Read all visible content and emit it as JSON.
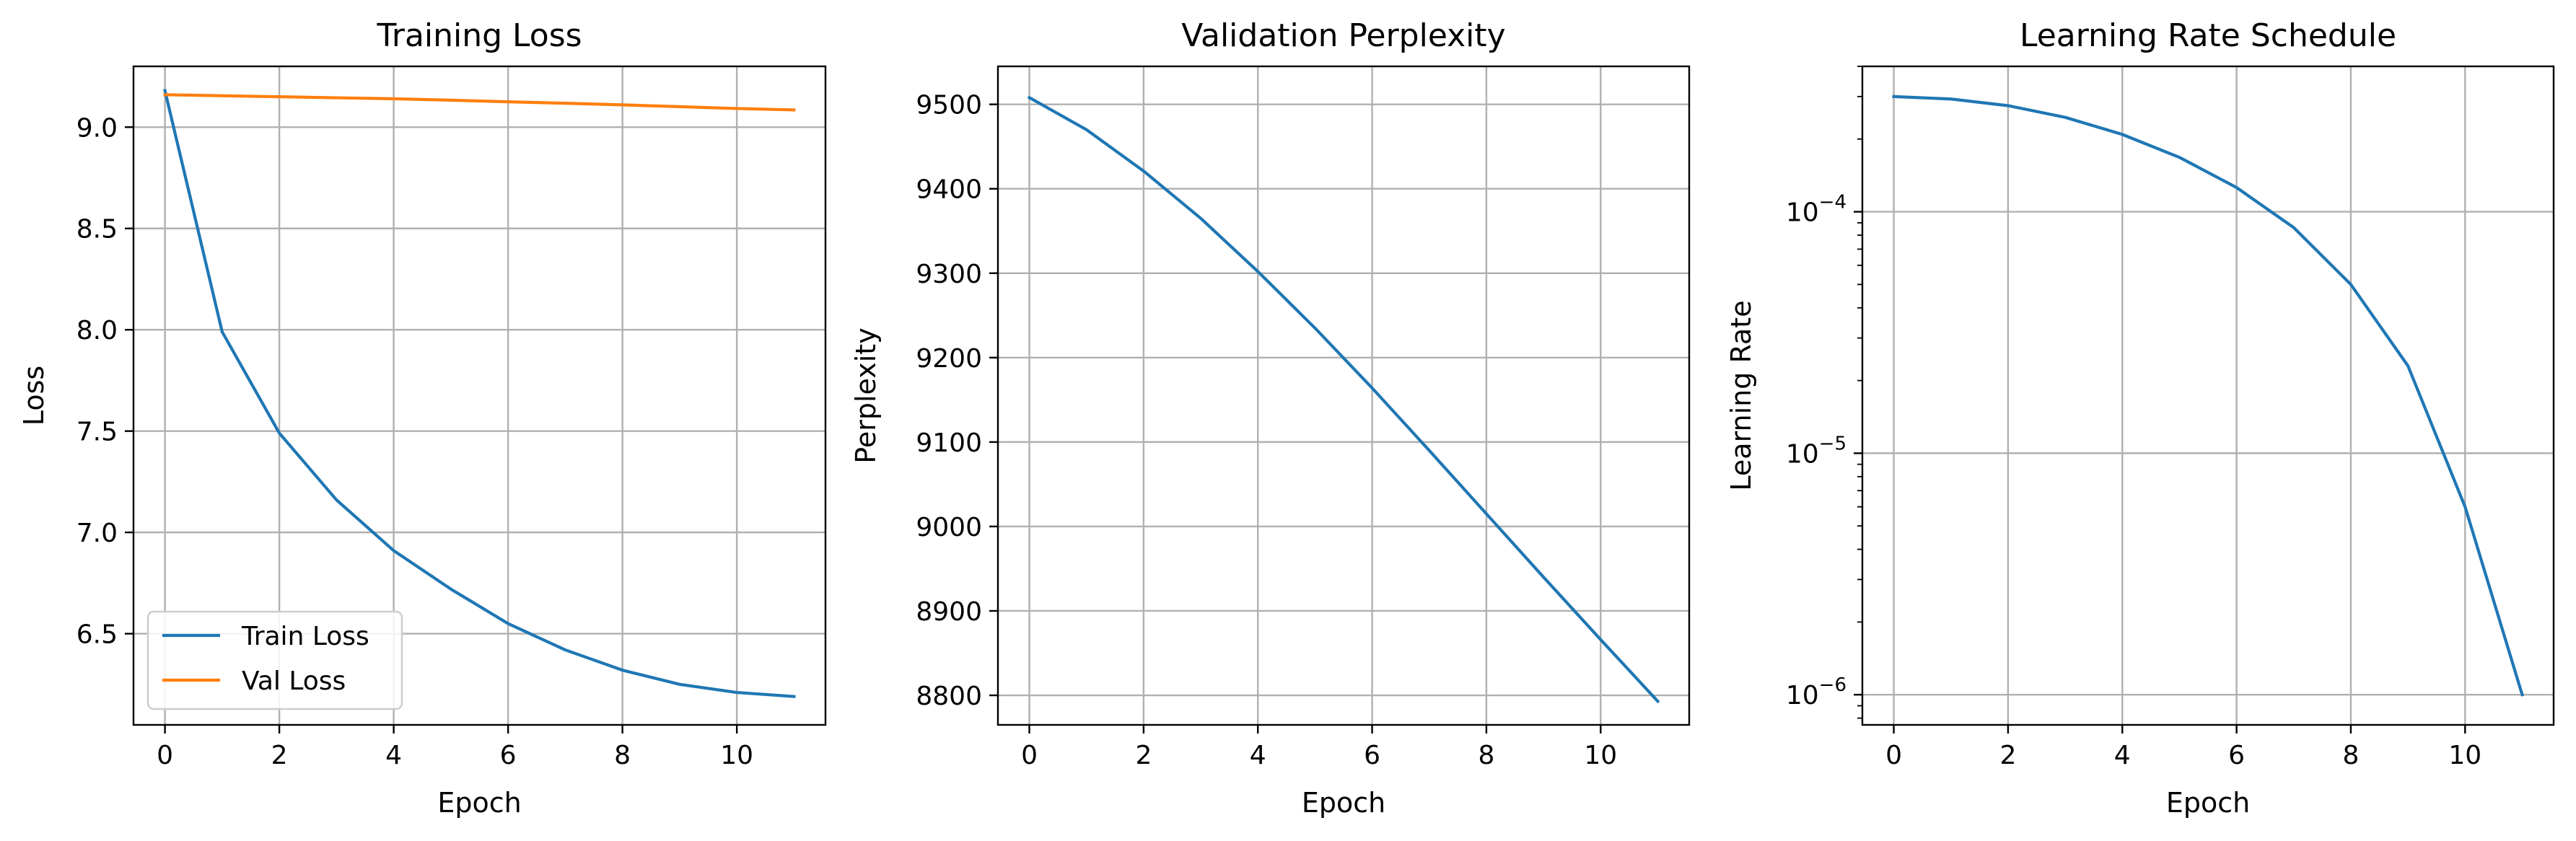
{
  "chart_data": [
    {
      "type": "line",
      "title": "Training Loss",
      "xlabel": "Epoch",
      "ylabel": "Loss",
      "x": [
        0,
        1,
        2,
        3,
        4,
        5,
        6,
        7,
        8,
        9,
        10,
        11
      ],
      "xlim": [
        -0.55,
        11.55
      ],
      "ylim": [
        6.05,
        9.3
      ],
      "xticks": [
        0,
        2,
        4,
        6,
        8,
        10
      ],
      "yticks": [
        6.5,
        7.0,
        7.5,
        8.0,
        8.5,
        9.0
      ],
      "xtick_labels": [
        "0",
        "2",
        "4",
        "6",
        "8",
        "10"
      ],
      "ytick_labels": [
        "6.5",
        "7.0",
        "7.5",
        "8.0",
        "8.5",
        "9.0"
      ],
      "grid": true,
      "legend_loc": "lower-left",
      "series": [
        {
          "name": "Train Loss",
          "color": "#1f77b4",
          "values": [
            9.18,
            7.99,
            7.49,
            7.16,
            6.91,
            6.72,
            6.55,
            6.42,
            6.32,
            6.25,
            6.21,
            6.19
          ]
        },
        {
          "name": "Val Loss",
          "color": "#ff7f0e",
          "values": [
            9.16,
            9.155,
            9.15,
            9.145,
            9.14,
            9.133,
            9.125,
            9.118,
            9.11,
            9.101,
            9.092,
            9.085
          ]
        }
      ]
    },
    {
      "type": "line",
      "title": "Validation Perplexity",
      "xlabel": "Epoch",
      "ylabel": "Perplexity",
      "x": [
        0,
        1,
        2,
        3,
        4,
        5,
        6,
        7,
        8,
        9,
        10,
        11
      ],
      "xlim": [
        -0.55,
        11.55
      ],
      "ylim": [
        8765,
        9545
      ],
      "xticks": [
        0,
        2,
        4,
        6,
        8,
        10
      ],
      "yticks": [
        8800,
        8900,
        9000,
        9100,
        9200,
        9300,
        9400,
        9500
      ],
      "xtick_labels": [
        "0",
        "2",
        "4",
        "6",
        "8",
        "10"
      ],
      "ytick_labels": [
        "8800",
        "8900",
        "9000",
        "9100",
        "9200",
        "9300",
        "9400",
        "9500"
      ],
      "grid": true,
      "series": [
        {
          "color": "#1f77b4",
          "values": [
            9508,
            9470,
            9421,
            9365,
            9302,
            9235,
            9164,
            9090,
            9015,
            8940,
            8866,
            8793
          ]
        }
      ]
    },
    {
      "type": "line",
      "title": "Learning Rate Schedule",
      "xlabel": "Epoch",
      "ylabel": "Learning Rate",
      "yscale": "log",
      "x": [
        0,
        1,
        2,
        3,
        4,
        5,
        6,
        7,
        8,
        9,
        10,
        11
      ],
      "xlim": [
        -0.55,
        11.55
      ],
      "ylim": [
        7.5e-07,
        0.0004
      ],
      "xticks": [
        0,
        2,
        4,
        6,
        8,
        10
      ],
      "yticks": [
        1e-06,
        1e-05,
        0.0001
      ],
      "xtick_labels": [
        "0",
        "2",
        "4",
        "6",
        "8",
        "10"
      ],
      "ytick_labels": [
        {
          "base": "10",
          "exp": "−6"
        },
        {
          "base": "10",
          "exp": "−5"
        },
        {
          "base": "10",
          "exp": "−4"
        }
      ],
      "grid": true,
      "series": [
        {
          "color": "#1f77b4",
          "values": [
            0.0003,
            0.000293,
            0.000275,
            0.000246,
            0.000209,
            0.000168,
            0.000126,
            8.6e-05,
            5e-05,
            2.3e-05,
            6e-06,
            1e-06
          ]
        }
      ]
    }
  ]
}
